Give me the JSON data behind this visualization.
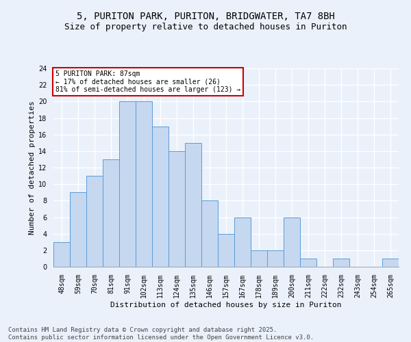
{
  "title_line1": "5, PURITON PARK, PURITON, BRIDGWATER, TA7 8BH",
  "title_line2": "Size of property relative to detached houses in Puriton",
  "xlabel": "Distribution of detached houses by size in Puriton",
  "ylabel": "Number of detached properties",
  "categories": [
    "48sqm",
    "59sqm",
    "70sqm",
    "81sqm",
    "91sqm",
    "102sqm",
    "113sqm",
    "124sqm",
    "135sqm",
    "146sqm",
    "157sqm",
    "167sqm",
    "178sqm",
    "189sqm",
    "200sqm",
    "211sqm",
    "222sqm",
    "232sqm",
    "243sqm",
    "254sqm",
    "265sqm"
  ],
  "values": [
    3,
    9,
    11,
    13,
    20,
    20,
    17,
    14,
    15,
    8,
    4,
    6,
    2,
    2,
    6,
    1,
    0,
    1,
    0,
    0,
    1
  ],
  "bar_color": "#c5d8f0",
  "bar_edge_color": "#5b9bd5",
  "annotation_title": "5 PURITON PARK: 87sqm",
  "annotation_line2": "← 17% of detached houses are smaller (26)",
  "annotation_line3": "81% of semi-detached houses are larger (123) →",
  "annotation_box_edge_color": "#cc0000",
  "ylim": [
    0,
    24
  ],
  "yticks": [
    0,
    2,
    4,
    6,
    8,
    10,
    12,
    14,
    16,
    18,
    20,
    22,
    24
  ],
  "background_color": "#eaf1fb",
  "grid_color": "#ffffff",
  "footer": "Contains HM Land Registry data © Crown copyright and database right 2025.\nContains public sector information licensed under the Open Government Licence v3.0.",
  "title_fontsize": 10,
  "subtitle_fontsize": 9,
  "axis_label_fontsize": 8,
  "tick_fontsize": 7,
  "annotation_fontsize": 7,
  "footer_fontsize": 6.5
}
